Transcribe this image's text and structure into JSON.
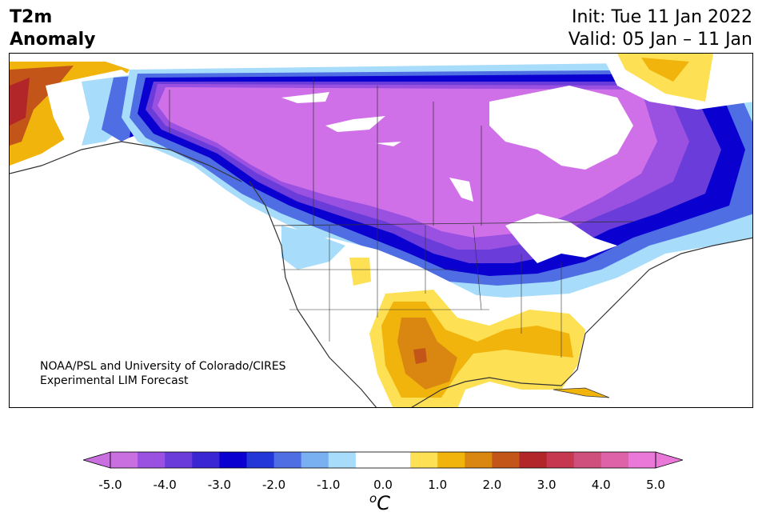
{
  "title": {
    "left_line1": "T2m",
    "left_line2": "Anomaly",
    "init": "Init: Tue 11 Jan 2022",
    "valid": "Valid: 05 Jan – 11 Jan"
  },
  "credit": {
    "line1": "NOAA/PSL and University of Colorado/CIRES",
    "line2": "Experimental LIM Forecast"
  },
  "colorbar": {
    "colors": [
      "#c96fe0",
      "#9a50e0",
      "#6a3ddb",
      "#3b26d4",
      "#0a00d0",
      "#2337d9",
      "#4f6ee4",
      "#79b0f2",
      "#a8dcfb",
      "#ffffff",
      "#ffffff",
      "#fde053",
      "#f1b40d",
      "#da8712",
      "#c35518",
      "#b2262a",
      "#c63750",
      "#cf4f7d",
      "#dd62a8",
      "#ea78d9"
    ],
    "tick_labels": [
      "-5.0",
      "-4.0",
      "-3.0",
      "-2.0",
      "-1.0",
      "0.0",
      "1.0",
      "2.0",
      "3.0",
      "4.0",
      "5.0"
    ],
    "unit_base": "C",
    "unit_sup": "o"
  },
  "map": {
    "colors": {
      "strong_cold": "#d070e8",
      "cold_4": "#9a50e0",
      "cold_3": "#6a3ddb",
      "cold_25": "#3b26d4",
      "cold_2": "#0a00d0",
      "cold_15": "#2337d9",
      "cold_1": "#4f6ee4",
      "cold_05": "#79b0f2",
      "cool": "#a8dcfb",
      "warm_05": "#fde053",
      "warm_1": "#f1b40d",
      "warm_15": "#da8712",
      "warm_2": "#c35518",
      "warm_3": "#b2262a",
      "coast": "#333333"
    }
  }
}
